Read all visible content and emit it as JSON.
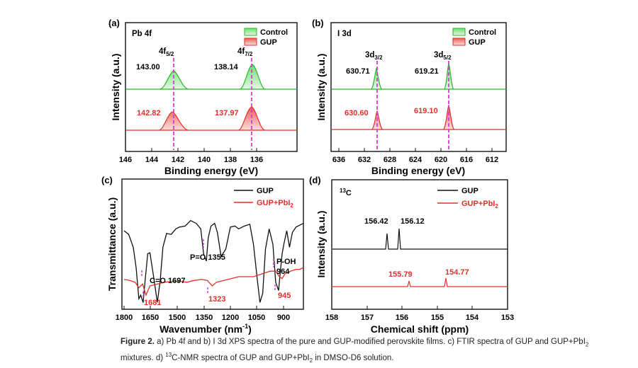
{
  "figure": {
    "panels": {
      "a": {
        "letter": "(a)",
        "region": "Pb 4f",
        "ylabel": "Intensity (a.u.)",
        "xlabel": "Binding energy (eV)",
        "legend": [
          "Control",
          "GUP"
        ],
        "peak_labels": [
          {
            "main": "4f",
            "sub": "5/2"
          },
          {
            "main": "4f",
            "sub": "7/2"
          }
        ],
        "control_values": [
          "143.00",
          "138.14"
        ],
        "gup_values": [
          "142.82",
          "137.97"
        ]
      },
      "b": {
        "letter": "(b)",
        "region": "I 3d",
        "ylabel": "Intensity (a.u.)",
        "xlabel": "Binding energy (eV)",
        "legend": [
          "Control",
          "GUP"
        ],
        "peak_labels": [
          {
            "main": "3d",
            "sub": "3/2"
          },
          {
            "main": "3d",
            "sub": "5/2"
          }
        ],
        "control_values": [
          "630.71",
          "619.21"
        ],
        "gup_values": [
          "630.60",
          "619.10"
        ]
      },
      "c": {
        "letter": "(c)",
        "ylabel": "Transmittance (a.u.)",
        "xlabel": "Wavenumber (nm",
        "xlabel_sup": "-1",
        "xlabel_close": ")",
        "legend": [
          "GUP",
          "GUP+PbI",
          "2"
        ],
        "annotations": {
          "co": "C=O 1697",
          "po": "P=O 1355",
          "poh_1": "P-OH",
          "poh_2": "964"
        },
        "red_values": [
          "1681",
          "1323",
          "945"
        ]
      },
      "d": {
        "letter": "(d)",
        "nucleus_sup": "13",
        "nucleus": "C",
        "ylabel": "Intensity (a.u.)",
        "xlabel": "Chemical shift (ppm)",
        "legend": [
          "GUP",
          "GUP+PbI",
          "2"
        ],
        "black_values": [
          "156.42",
          "156.12"
        ],
        "red_values": [
          "155.79",
          "154.77"
        ]
      }
    },
    "colors": {
      "control_line": "#2db52d",
      "control_fill": "#9be89b",
      "gup_line": "#e0302a",
      "gup_fill": "#f4a5a0",
      "dash": "#d63bd6",
      "red_text": "#e0302a",
      "black": "#111111"
    },
    "chart_data": [
      {
        "type": "area",
        "panel": "a",
        "title": "Pb 4f",
        "xlabel": "Binding energy (eV)",
        "ylabel": "Intensity (a.u.)",
        "xlim": [
          146,
          134.5
        ],
        "x_ticks": [
          146,
          144,
          142,
          140,
          138,
          136
        ],
        "series": [
          {
            "name": "Control",
            "peaks": [
              {
                "x": 143.0,
                "height": 0.55
              },
              {
                "x": 138.14,
                "height": 0.75
              }
            ]
          },
          {
            "name": "GUP",
            "peaks": [
              {
                "x": 142.82,
                "height": 0.55
              },
              {
                "x": 137.97,
                "height": 0.75
              }
            ]
          }
        ]
      },
      {
        "type": "area",
        "panel": "b",
        "title": "I 3d",
        "xlabel": "Binding energy (eV)",
        "ylabel": "Intensity (a.u.)",
        "xlim": [
          637,
          610
        ],
        "x_ticks": [
          636,
          632,
          628,
          624,
          620,
          616,
          612
        ],
        "series": [
          {
            "name": "Control",
            "peaks": [
              {
                "x": 630.71,
                "height": 0.6
              },
              {
                "x": 619.21,
                "height": 0.8
              }
            ]
          },
          {
            "name": "GUP",
            "peaks": [
              {
                "x": 630.6,
                "height": 0.6
              },
              {
                "x": 619.1,
                "height": 0.8
              }
            ]
          }
        ]
      },
      {
        "type": "line",
        "panel": "c",
        "xlabel": "Wavenumber (nm-1)",
        "ylabel": "Transmittance (a.u.)",
        "xlim": [
          1800,
          830
        ],
        "x_ticks": [
          1800,
          1650,
          1500,
          1350,
          1200,
          1050,
          900
        ],
        "series": [
          {
            "name": "GUP",
            "x": [
              1800,
              1775,
              1750,
              1735,
              1720,
              1710,
              1697,
              1685,
              1672,
              1660,
              1640,
              1620,
              1605,
              1590,
              1570,
              1545,
              1520,
              1500,
              1470,
              1440,
              1410,
              1385,
              1370,
              1355,
              1345,
              1330,
              1310,
              1295,
              1275,
              1250,
              1225,
              1200,
              1180,
              1150,
              1120,
              1100,
              1080,
              1065,
              1050,
              1035,
              1015,
              995,
              980,
              964,
              955,
              945,
              935,
              920,
              905,
              890,
              870,
              850,
              830
            ],
            "y": [
              0.8,
              0.76,
              0.62,
              0.4,
              0.06,
              0.1,
              0.02,
              0.28,
              0.55,
              0.56,
              0.3,
              0.02,
              0.25,
              0.62,
              0.77,
              0.76,
              0.82,
              0.84,
              0.85,
              0.91,
              0.88,
              0.82,
              0.55,
              0.47,
              0.72,
              0.85,
              0.88,
              0.78,
              0.52,
              0.6,
              0.84,
              0.85,
              0.82,
              0.85,
              0.87,
              0.65,
              0.28,
              0.02,
              0.12,
              0.6,
              0.82,
              0.65,
              0.24,
              0.15,
              0.35,
              0.55,
              0.66,
              0.8,
              0.62,
              0.78,
              0.84,
              0.86,
              0.88
            ]
          },
          {
            "name": "GUP+PbI2",
            "x": [
              1800,
              1770,
              1740,
              1720,
              1700,
              1681,
              1660,
              1620,
              1580,
              1540,
              1500,
              1460,
              1420,
              1380,
              1350,
              1323,
              1300,
              1260,
              1220,
              1180,
              1140,
              1100,
              1070,
              1040,
              1010,
              980,
              960,
              945,
              930,
              900,
              870,
              850,
              830
            ],
            "y": [
              0.27,
              0.26,
              0.24,
              0.18,
              0.22,
              0.1,
              0.2,
              0.22,
              0.24,
              0.25,
              0.25,
              0.24,
              0.26,
              0.27,
              0.26,
              0.2,
              0.24,
              0.26,
              0.28,
              0.3,
              0.3,
              0.3,
              0.32,
              0.34,
              0.36,
              0.36,
              0.3,
              0.28,
              0.33,
              0.36,
              0.38,
              0.38,
              0.4
            ]
          }
        ]
      },
      {
        "type": "line",
        "panel": "d",
        "title": "13C",
        "xlabel": "Chemical shift (ppm)",
        "ylabel": "Intensity (a.u.)",
        "xlim": [
          158,
          153
        ],
        "x_ticks": [
          158,
          157,
          156,
          155,
          154,
          153
        ],
        "series": [
          {
            "name": "GUP",
            "peaks": [
              {
                "x": 156.42,
                "height": 0.8
              },
              {
                "x": 156.12,
                "height": 0.9
              }
            ]
          },
          {
            "name": "GUP+PbI2",
            "peaks": [
              {
                "x": 155.79,
                "height": 0.2
              },
              {
                "x": 154.77,
                "height": 0.28
              }
            ]
          }
        ]
      }
    ]
  },
  "caption": {
    "label": "Figure 2.",
    "text_1": " a) Pb 4f and b) I 3d XPS spectra of the pure and GUP-modified perovskite films. c) FTIR spectra of GUP and GUP+PbI",
    "sub_1": "2",
    "text_2": " mixtures. d) ",
    "sup_1": "13",
    "text_3": "C-NMR spectra of GUP and GUP+PbI",
    "sub_2": "2",
    "text_4": " in DMSO-D6 solution."
  }
}
